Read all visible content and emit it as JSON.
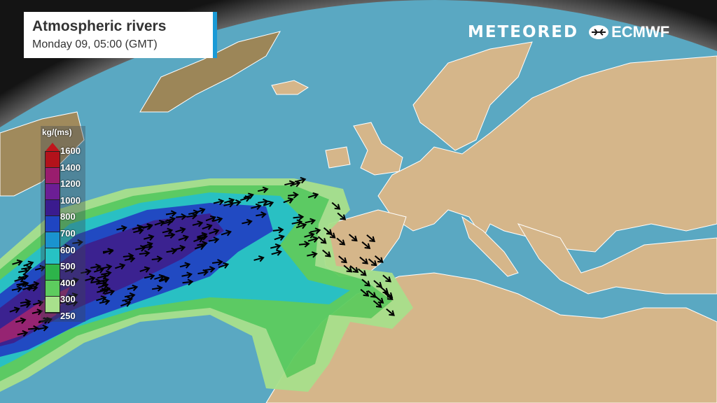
{
  "header": {
    "title": "Atmospheric rivers",
    "subtitle": "Monday 09, 05:00 (GMT)"
  },
  "logos": {
    "meteored": "METEORED",
    "ecmwf": "ECMWF"
  },
  "legend": {
    "unit": "kg/(ms)",
    "levels": [
      "1600",
      "1400",
      "1200",
      "1000",
      "800",
      "700",
      "600",
      "500",
      "400",
      "300",
      "250"
    ],
    "colors": [
      "#b3121b",
      "#9a1d6e",
      "#6c1e95",
      "#3a1b8e",
      "#1f45c2",
      "#1a93cf",
      "#27c2c4",
      "#2db44a",
      "#5dcc5e",
      "#a8e08c"
    ]
  },
  "map": {
    "ocean_color": "#5aa8c2",
    "land_color": "#d5b68a",
    "background": "#141414"
  }
}
